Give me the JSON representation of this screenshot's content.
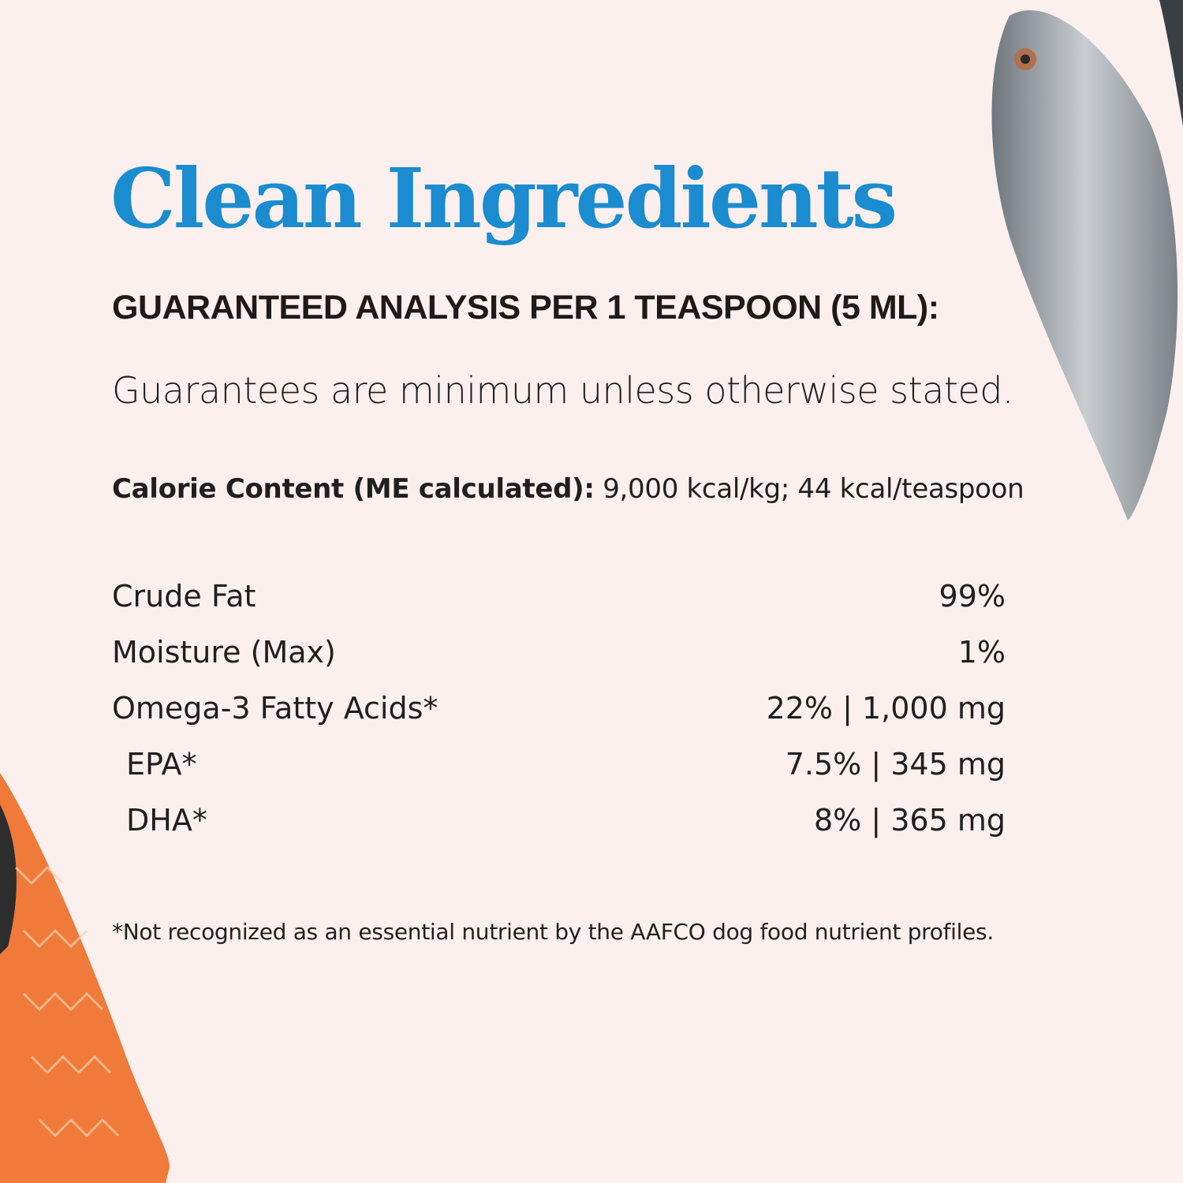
{
  "title": "Clean Ingredients",
  "subtitle": "GUARANTEED ANALYSIS PER 1 TEASPOON (5 ML):",
  "note": "Guarantees are minimum unless otherwise stated.",
  "calorie": {
    "label": "Calorie Content (ME calculated):",
    "value": "9,000 kcal/kg; 44 kcal/teaspoon"
  },
  "rows": [
    {
      "label": "Crude Fat",
      "value": "99%"
    },
    {
      "label": "Moisture (Max)",
      "value": "1%"
    },
    {
      "label": "Omega-3 Fatty Acids*",
      "value": "22% | 1,000 mg"
    },
    {
      "label": "EPA*",
      "value": "7.5% | 345 mg"
    },
    {
      "label": "DHA*",
      "value": "8% | 365 mg"
    }
  ],
  "footnote": "*Not recognized as an essential nutrient by the AAFCO dog food nutrient profiles.",
  "colors": {
    "background": "#fcf0ee",
    "title": "#1a8ccf",
    "salmon": "#f07a3a"
  }
}
